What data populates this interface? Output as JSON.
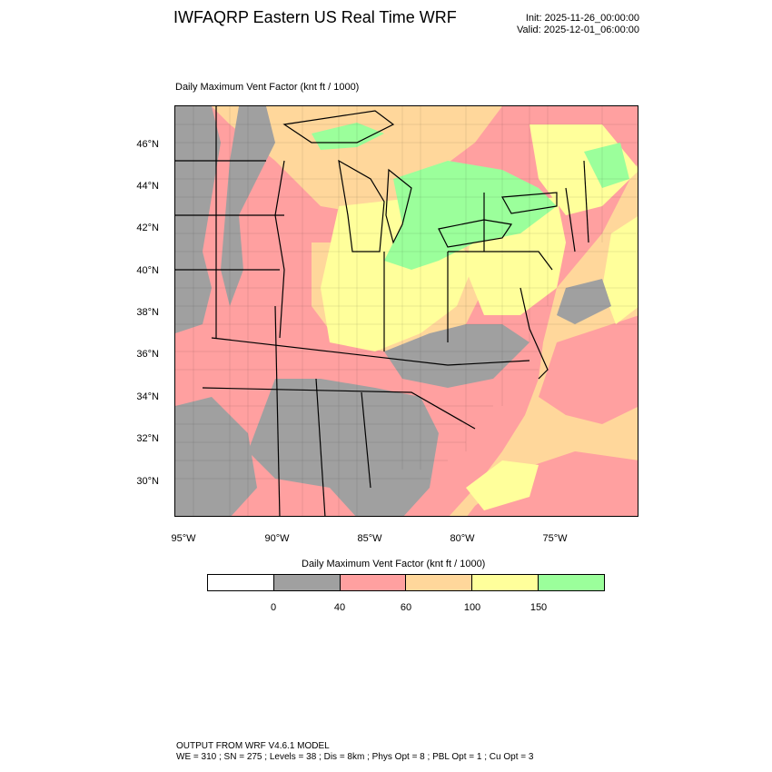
{
  "header": {
    "title": "IWFAQRP Eastern US Real Time WRF",
    "init": "Init: 2025-11-26_00:00:00",
    "valid": "Valid: 2025-12-01_06:00:00"
  },
  "map": {
    "title": "Daily Maximum Vent Factor   (knt ft / 1000)",
    "lat_labels": [
      "46°N",
      "44°N",
      "42°N",
      "40°N",
      "38°N",
      "36°N",
      "34°N",
      "32°N",
      "30°N"
    ],
    "lon_labels": [
      "95°W",
      "90°W",
      "85°W",
      "80°W",
      "75°W"
    ]
  },
  "colorbar": {
    "title": "Daily Maximum Vent Factor  (knt ft / 1000)",
    "labels": [
      "0",
      "40",
      "60",
      "100",
      "150"
    ],
    "colors": [
      "#ffffff",
      "#a0a0a0",
      "#ffa0a0",
      "#ffd79b",
      "#ffff9b",
      "#9bff9b"
    ]
  },
  "footer": {
    "line1": "OUTPUT FROM WRF V4.6.1 MODEL",
    "line2": "WE = 310 ; SN = 275 ; Levels = 38 ; Dis = 8km ; Phys Opt = 8 ; PBL Opt = 1 ; Cu Opt = 3"
  }
}
